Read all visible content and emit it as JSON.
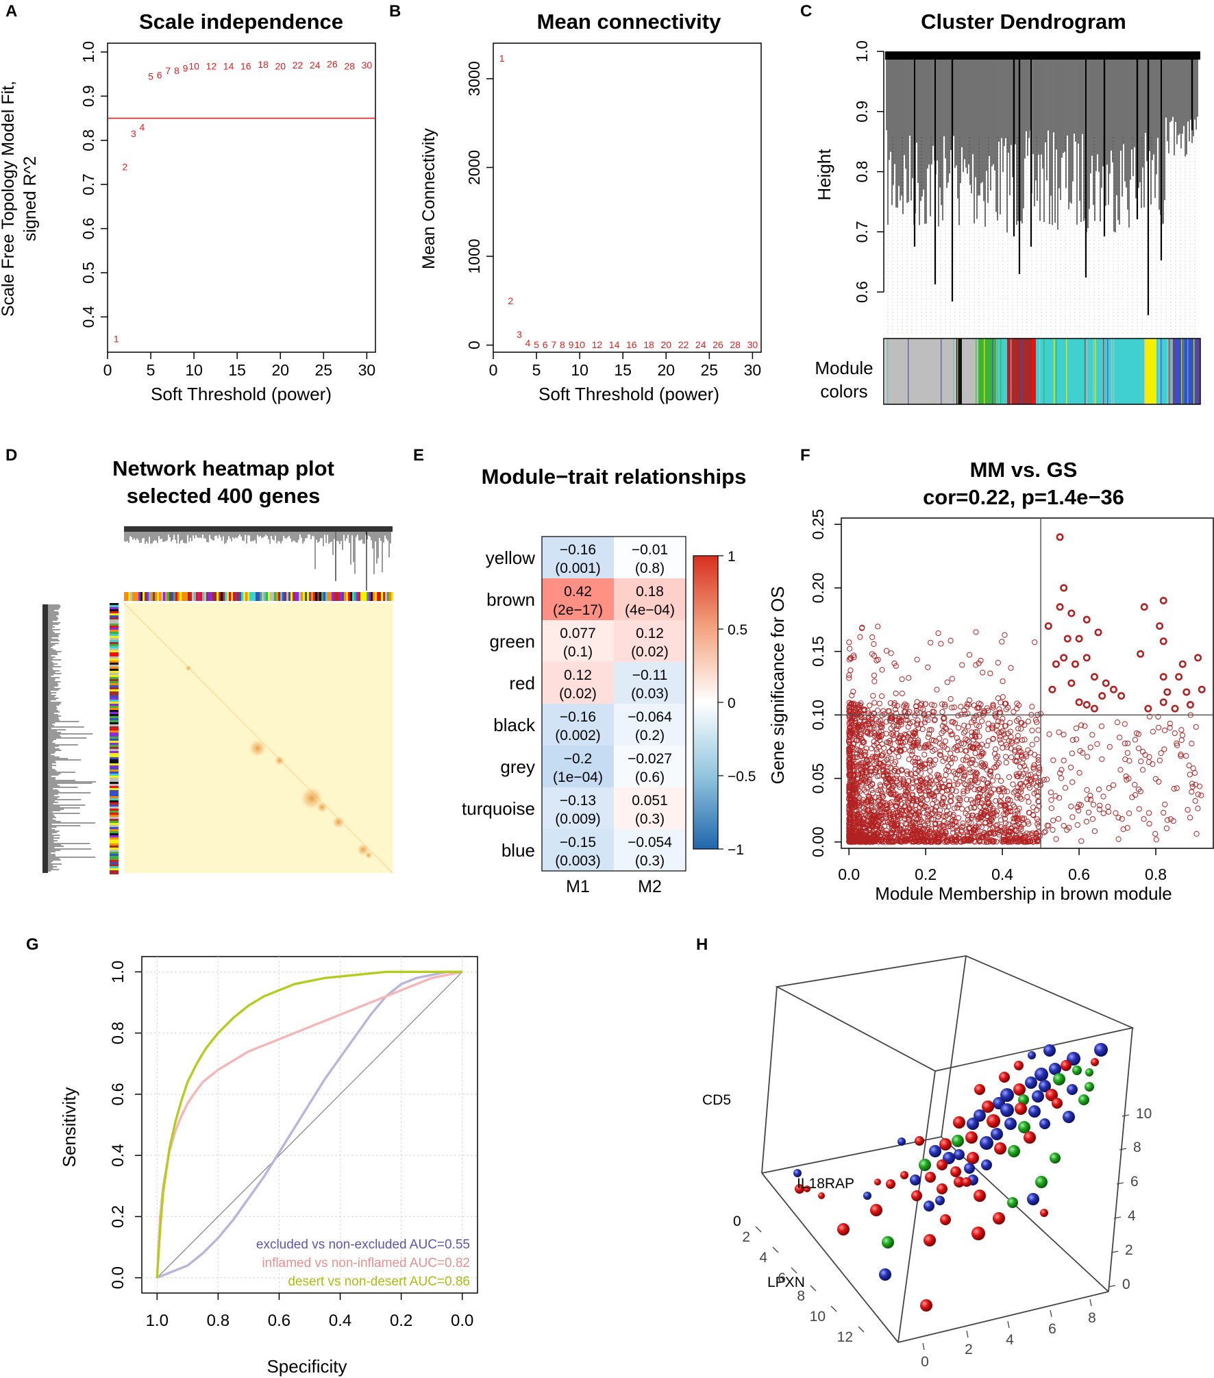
{
  "figure": {
    "panel_letters": [
      "A",
      "B",
      "C",
      "D",
      "E",
      "F",
      "G",
      "H"
    ]
  },
  "chart_data": [
    {
      "panel": "A",
      "type": "scatter",
      "title": "Scale independence",
      "xlabel": "Soft Threshold (power)",
      "ylabel_line1": "Scale Free Topology Model Fit,",
      "ylabel_line2": "signed R^2",
      "xlim": [
        0,
        31
      ],
      "ylim": [
        0.32,
        1.02
      ],
      "xticks": [
        "0",
        "5",
        "10",
        "15",
        "20",
        "25",
        "30"
      ],
      "yticks": [
        "0.4",
        "0.5",
        "0.6",
        "0.7",
        "0.8",
        "0.9",
        "1.0"
      ],
      "xtick_values": [
        0,
        5,
        10,
        15,
        20,
        25,
        30
      ],
      "ytick_values": [
        0.4,
        0.5,
        0.6,
        0.7,
        0.8,
        0.9,
        1.0
      ],
      "hline": 0.85,
      "points": [
        {
          "label": "1",
          "x": 1,
          "y": 0.35
        },
        {
          "label": "2",
          "x": 2,
          "y": 0.74
        },
        {
          "label": "3",
          "x": 3,
          "y": 0.815
        },
        {
          "label": "4",
          "x": 4,
          "y": 0.83
        },
        {
          "label": "5",
          "x": 5,
          "y": 0.945
        },
        {
          "label": "6",
          "x": 6,
          "y": 0.948
        },
        {
          "label": "7",
          "x": 7,
          "y": 0.958
        },
        {
          "label": "8",
          "x": 8,
          "y": 0.958
        },
        {
          "label": "9",
          "x": 9,
          "y": 0.963
        },
        {
          "label": "10",
          "x": 10,
          "y": 0.968
        },
        {
          "label": "12",
          "x": 12,
          "y": 0.968
        },
        {
          "label": "14",
          "x": 14,
          "y": 0.968
        },
        {
          "label": "16",
          "x": 16,
          "y": 0.968
        },
        {
          "label": "18",
          "x": 18,
          "y": 0.972
        },
        {
          "label": "20",
          "x": 20,
          "y": 0.968
        },
        {
          "label": "22",
          "x": 22,
          "y": 0.97
        },
        {
          "label": "24",
          "x": 24,
          "y": 0.97
        },
        {
          "label": "26",
          "x": 26,
          "y": 0.973
        },
        {
          "label": "28",
          "x": 28,
          "y": 0.968
        },
        {
          "label": "30",
          "x": 30,
          "y": 0.97
        }
      ]
    },
    {
      "panel": "B",
      "type": "scatter",
      "title": "Mean connectivity",
      "xlabel": "Soft Threshold (power)",
      "ylabel": "Mean Connectivity",
      "xlim": [
        0,
        31
      ],
      "ylim": [
        -80,
        3400
      ],
      "xticks": [
        "0",
        "5",
        "10",
        "15",
        "20",
        "25",
        "30"
      ],
      "yticks": [
        "0",
        "1000",
        "2000",
        "3000"
      ],
      "xtick_values": [
        0,
        5,
        10,
        15,
        20,
        25,
        30
      ],
      "ytick_values": [
        0,
        1000,
        2000,
        3000
      ],
      "points": [
        {
          "label": "1",
          "x": 1,
          "y": 3230
        },
        {
          "label": "2",
          "x": 2,
          "y": 500
        },
        {
          "label": "3",
          "x": 3,
          "y": 120
        },
        {
          "label": "4",
          "x": 4,
          "y": 25
        },
        {
          "label": "5",
          "x": 5,
          "y": 5
        },
        {
          "label": "6",
          "x": 6,
          "y": 5
        },
        {
          "label": "7",
          "x": 7,
          "y": 5
        },
        {
          "label": "8",
          "x": 8,
          "y": 5
        },
        {
          "label": "9",
          "x": 9,
          "y": 5
        },
        {
          "label": "10",
          "x": 10,
          "y": 5
        },
        {
          "label": "12",
          "x": 12,
          "y": 5
        },
        {
          "label": "14",
          "x": 14,
          "y": 5
        },
        {
          "label": "16",
          "x": 16,
          "y": 5
        },
        {
          "label": "18",
          "x": 18,
          "y": 5
        },
        {
          "label": "20",
          "x": 20,
          "y": 5
        },
        {
          "label": "22",
          "x": 22,
          "y": 5
        },
        {
          "label": "24",
          "x": 24,
          "y": 5
        },
        {
          "label": "26",
          "x": 26,
          "y": 5
        },
        {
          "label": "28",
          "x": 28,
          "y": 5
        },
        {
          "label": "30",
          "x": 30,
          "y": 5
        }
      ]
    },
    {
      "panel": "C",
      "type": "dendrogram",
      "title": "Cluster Dendrogram",
      "ylabel": "Height",
      "ylim": [
        0.52,
        1.0
      ],
      "yticks": [
        "0.6",
        "0.7",
        "0.8",
        "0.9",
        "1.0"
      ],
      "ytick_values": [
        0.6,
        0.7,
        0.8,
        0.9,
        1.0
      ],
      "module_label_line1": "Module",
      "module_label_line2": "colors",
      "module_colors": [
        "grey",
        "black",
        "green",
        "brown",
        "red",
        "turquoise",
        "yellow",
        "blue"
      ]
    },
    {
      "panel": "D",
      "type": "heatmap",
      "title_line1": "Network heatmap plot",
      "title_line2": "selected 400 genes"
    },
    {
      "panel": "E",
      "type": "heatmap",
      "title": "Module−trait relationships",
      "columns": [
        "M1",
        "M2"
      ],
      "rows": [
        "yellow",
        "brown",
        "green",
        "red",
        "black",
        "grey",
        "turquoise",
        "blue"
      ],
      "values": [
        [
          -0.16,
          -0.01
        ],
        [
          0.42,
          0.18
        ],
        [
          0.077,
          0.12
        ],
        [
          0.12,
          -0.11
        ],
        [
          -0.16,
          -0.064
        ],
        [
          -0.2,
          -0.027
        ],
        [
          -0.13,
          0.051
        ],
        [
          -0.15,
          -0.054
        ]
      ],
      "cells": [
        [
          "−0.16",
          "(0.001)",
          "−0.01",
          "(0.8)"
        ],
        [
          "0.42",
          "(2e−17)",
          "0.18",
          "(4e−04)"
        ],
        [
          "0.077",
          "(0.1)",
          "0.12",
          "(0.02)"
        ],
        [
          "0.12",
          "(0.02)",
          "−0.11",
          "(0.03)"
        ],
        [
          "−0.16",
          "(0.002)",
          "−0.064",
          "(0.2)"
        ],
        [
          "−0.2",
          "(1e−04)",
          "−0.027",
          "(0.6)"
        ],
        [
          "−0.13",
          "(0.009)",
          "0.051",
          "(0.3)"
        ],
        [
          "−0.15",
          "(0.003)",
          "−0.054",
          "(0.3)"
        ]
      ],
      "colorbar_ticks": [
        "1",
        "0.5",
        "0",
        "−0.5",
        "−1"
      ],
      "colorbar_values": [
        1,
        0.5,
        0,
        -0.5,
        -1
      ]
    },
    {
      "panel": "F",
      "type": "scatter",
      "title_line1": "MM vs. GS",
      "title_line2": "cor=0.22, p=1.4e−36",
      "xlabel": "Module Membership in brown module",
      "ylabel": "Gene significance for OS",
      "xlim": [
        -0.02,
        0.95
      ],
      "ylim": [
        -0.005,
        0.255
      ],
      "xticks": [
        "0.0",
        "0.2",
        "0.4",
        "0.6",
        "0.8"
      ],
      "yticks": [
        "0.00",
        "0.05",
        "0.10",
        "0.15",
        "0.20",
        "0.25"
      ],
      "xtick_values": [
        0,
        0.2,
        0.4,
        0.6,
        0.8
      ],
      "ytick_values": [
        0,
        0.05,
        0.1,
        0.15,
        0.2,
        0.25
      ],
      "vline": 0.5,
      "hline": 0.1,
      "point_color": "#b22222",
      "highlight_points": [
        [
          0.55,
          0.24
        ],
        [
          0.56,
          0.2
        ],
        [
          0.55,
          0.185
        ],
        [
          0.52,
          0.17
        ],
        [
          0.58,
          0.18
        ],
        [
          0.62,
          0.175
        ],
        [
          0.57,
          0.16
        ],
        [
          0.6,
          0.16
        ],
        [
          0.65,
          0.165
        ],
        [
          0.54,
          0.14
        ],
        [
          0.56,
          0.145
        ],
        [
          0.59,
          0.14
        ],
        [
          0.62,
          0.145
        ],
        [
          0.64,
          0.13
        ],
        [
          0.67,
          0.125
        ],
        [
          0.69,
          0.12
        ],
        [
          0.71,
          0.115
        ],
        [
          0.6,
          0.11
        ],
        [
          0.62,
          0.108
        ],
        [
          0.64,
          0.105
        ],
        [
          0.66,
          0.115
        ],
        [
          0.53,
          0.12
        ],
        [
          0.58,
          0.125
        ],
        [
          0.77,
          0.185
        ],
        [
          0.82,
          0.19
        ],
        [
          0.81,
          0.17
        ],
        [
          0.82,
          0.158
        ],
        [
          0.76,
          0.148
        ],
        [
          0.87,
          0.14
        ],
        [
          0.91,
          0.145
        ],
        [
          0.82,
          0.13
        ],
        [
          0.86,
          0.13
        ],
        [
          0.83,
          0.118
        ],
        [
          0.88,
          0.118
        ],
        [
          0.92,
          0.12
        ],
        [
          0.85,
          0.105
        ],
        [
          0.78,
          0.105
        ],
        [
          0.82,
          0.11
        ],
        [
          0.89,
          0.108
        ]
      ]
    },
    {
      "panel": "G",
      "type": "line",
      "xlabel": "Specificity",
      "ylabel": "Sensitivity",
      "xlim": [
        1.05,
        -0.05
      ],
      "ylim": [
        -0.05,
        1.05
      ],
      "xticks": [
        "1.0",
        "0.8",
        "0.6",
        "0.4",
        "0.2",
        "0.0"
      ],
      "yticks": [
        "0.0",
        "0.2",
        "0.4",
        "0.6",
        "0.8",
        "1.0"
      ],
      "xtick_values": [
        1.0,
        0.8,
        0.6,
        0.4,
        0.2,
        0.0
      ],
      "ytick_values": [
        0.0,
        0.2,
        0.4,
        0.6,
        0.8,
        1.0
      ],
      "series": [
        {
          "name": "excluded vs non-excluded AUC=0.55",
          "color": "#b8b4dc",
          "legend_color": "#5b55b0",
          "x": [
            1.0,
            0.95,
            0.9,
            0.85,
            0.8,
            0.75,
            0.7,
            0.65,
            0.6,
            0.55,
            0.5,
            0.45,
            0.4,
            0.35,
            0.3,
            0.25,
            0.2,
            0.15,
            0.1,
            0.05,
            0.0
          ],
          "y": [
            0.0,
            0.02,
            0.04,
            0.08,
            0.13,
            0.19,
            0.26,
            0.33,
            0.41,
            0.49,
            0.57,
            0.65,
            0.72,
            0.79,
            0.86,
            0.92,
            0.96,
            0.98,
            0.99,
            1.0,
            1.0
          ]
        },
        {
          "name": "inflamed vs non-inflamed AUC=0.82",
          "color": "#f4b6b6",
          "legend_color": "#e89090",
          "x": [
            1.0,
            0.99,
            0.98,
            0.96,
            0.94,
            0.92,
            0.9,
            0.88,
            0.85,
            0.8,
            0.75,
            0.7,
            0.65,
            0.6,
            0.55,
            0.5,
            0.45,
            0.4,
            0.35,
            0.3,
            0.25,
            0.2,
            0.15,
            0.1,
            0.05,
            0.0
          ],
          "y": [
            0.0,
            0.2,
            0.3,
            0.41,
            0.48,
            0.53,
            0.57,
            0.6,
            0.64,
            0.68,
            0.71,
            0.74,
            0.76,
            0.78,
            0.8,
            0.82,
            0.84,
            0.86,
            0.88,
            0.9,
            0.92,
            0.94,
            0.96,
            0.98,
            0.99,
            1.0
          ]
        },
        {
          "name": "desert vs non-desert AUC=0.86",
          "color": "#b5cc1e",
          "legend_color": "#a8bf10",
          "x": [
            1.0,
            0.99,
            0.98,
            0.96,
            0.94,
            0.92,
            0.9,
            0.87,
            0.84,
            0.8,
            0.75,
            0.7,
            0.65,
            0.6,
            0.55,
            0.5,
            0.45,
            0.4,
            0.35,
            0.3,
            0.25,
            0.2,
            0.15,
            0.1,
            0.05,
            0.0
          ],
          "y": [
            0.0,
            0.16,
            0.28,
            0.42,
            0.51,
            0.58,
            0.64,
            0.7,
            0.75,
            0.8,
            0.85,
            0.89,
            0.92,
            0.94,
            0.96,
            0.97,
            0.98,
            0.985,
            0.99,
            0.995,
            1.0,
            1.0,
            1.0,
            1.0,
            1.0,
            1.0
          ]
        }
      ]
    },
    {
      "panel": "H",
      "type": "scatter3d",
      "axis_z_label": "CD5",
      "axis_y_label": "LPXN",
      "gene_label": "IL18RAP",
      "z_ticks": [
        "0",
        "2",
        "4",
        "6",
        "8",
        "10"
      ],
      "depth_ticks": [
        "2",
        "4",
        "6",
        "8",
        "10",
        "12"
      ],
      "x_ticks": [
        "0",
        "2",
        "4",
        "6",
        "8"
      ],
      "first_tick": "0",
      "colors": {
        "red": "#e01818",
        "blue": "#2a34b4",
        "green": "#22aa22"
      }
    }
  ]
}
